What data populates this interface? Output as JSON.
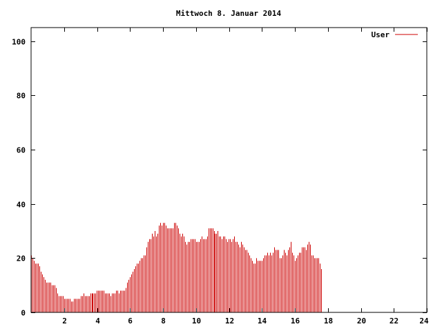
{
  "chart_data": {
    "type": "bar",
    "title": "Mittwoch 8. Januar 2014",
    "xlabel": "",
    "ylabel": "",
    "xlim": [
      0,
      24
    ],
    "ylim": [
      0,
      105
    ],
    "xticks": [
      2,
      4,
      6,
      8,
      10,
      12,
      14,
      16,
      18,
      20,
      22,
      24
    ],
    "xtick_labels": [
      "2",
      "4",
      "6",
      "8",
      "10",
      "12",
      "14",
      "16",
      "18",
      "20",
      "22",
      "24"
    ],
    "yticks": [
      0,
      20,
      40,
      60,
      80,
      100
    ],
    "ytick_labels": [
      "0",
      "20",
      "40",
      "60",
      "80",
      "100"
    ],
    "grid": false,
    "legend": "top-right",
    "sample_interval_hours": 0.0833,
    "series": [
      {
        "name": "User",
        "color": "#cc0000",
        "values": [
          21,
          20,
          19,
          18,
          18,
          18,
          17,
          15,
          14,
          13,
          12,
          11,
          11,
          11,
          11,
          10,
          10,
          10,
          9,
          7,
          6,
          6,
          6,
          6,
          5,
          5,
          5,
          5,
          5,
          4,
          4,
          5,
          5,
          5,
          5,
          5,
          6,
          6,
          7,
          6,
          6,
          6,
          6,
          7,
          7,
          7,
          7,
          7,
          8,
          8,
          8,
          8,
          8,
          8,
          7,
          7,
          7,
          7,
          6,
          7,
          7,
          7,
          8,
          8,
          7,
          8,
          8,
          8,
          8,
          9,
          11,
          12,
          13,
          14,
          15,
          16,
          17,
          18,
          18,
          19,
          20,
          20,
          21,
          21,
          24,
          26,
          27,
          27,
          29,
          28,
          30,
          28,
          29,
          32,
          33,
          32,
          33,
          33,
          32,
          31,
          31,
          31,
          31,
          31,
          33,
          33,
          32,
          31,
          29,
          28,
          29,
          28,
          26,
          25,
          26,
          26,
          27,
          27,
          27,
          27,
          26,
          26,
          26,
          27,
          28,
          27,
          27,
          27,
          28,
          31,
          31,
          31,
          31,
          30,
          29,
          29,
          30,
          28,
          28,
          27,
          28,
          28,
          27,
          26,
          27,
          27,
          26,
          27,
          28,
          26,
          26,
          25,
          24,
          26,
          25,
          24,
          23,
          23,
          22,
          21,
          20,
          19,
          18,
          18,
          20,
          19,
          19,
          19,
          19,
          20,
          21,
          21,
          22,
          21,
          22,
          21,
          22,
          24,
          23,
          23,
          23,
          20,
          20,
          21,
          23,
          22,
          21,
          23,
          24,
          26,
          22,
          21,
          19,
          20,
          21,
          22,
          22,
          24,
          24,
          24,
          23,
          25,
          26,
          25,
          21,
          21,
          20,
          20,
          20,
          20,
          18,
          16
        ]
      }
    ]
  }
}
